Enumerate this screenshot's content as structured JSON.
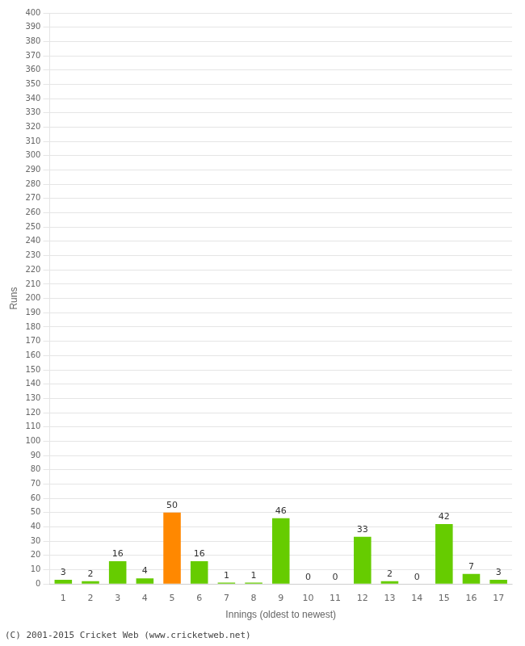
{
  "chart_data": {
    "type": "bar",
    "xlabel": "Innings (oldest to newest)",
    "ylabel": "Runs",
    "categories": [
      "1",
      "2",
      "3",
      "4",
      "5",
      "6",
      "7",
      "8",
      "9",
      "10",
      "11",
      "12",
      "13",
      "14",
      "15",
      "16",
      "17"
    ],
    "values": [
      3,
      2,
      16,
      4,
      50,
      16,
      1,
      1,
      46,
      0,
      0,
      33,
      2,
      0,
      42,
      7,
      3
    ],
    "colors": [
      "#66cc00",
      "#66cc00",
      "#66cc00",
      "#66cc00",
      "#ff8800",
      "#66cc00",
      "#66cc00",
      "#66cc00",
      "#66cc00",
      "#66cc00",
      "#66cc00",
      "#66cc00",
      "#66cc00",
      "#66cc00",
      "#66cc00",
      "#66cc00",
      "#66cc00"
    ],
    "ylim": [
      0,
      400
    ],
    "yticks": [
      0,
      10,
      20,
      30,
      40,
      50,
      60,
      70,
      80,
      90,
      100,
      110,
      120,
      130,
      140,
      150,
      160,
      170,
      180,
      190,
      200,
      210,
      220,
      230,
      240,
      250,
      260,
      270,
      280,
      290,
      300,
      310,
      320,
      330,
      340,
      350,
      360,
      370,
      380,
      390,
      400
    ],
    "grid": "y",
    "data_labels": true,
    "annotations": [
      "(C) 2001-2015 Cricket Web (www.cricketweb.net)"
    ]
  }
}
